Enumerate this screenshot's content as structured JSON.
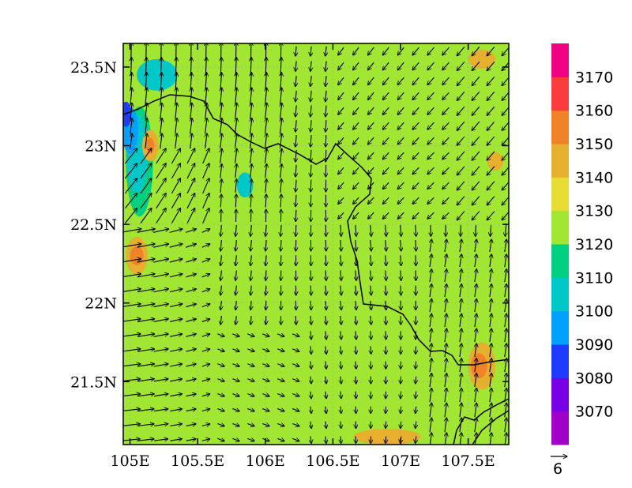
{
  "chart_data": {
    "type": "heatmap",
    "title": "",
    "xlabel": "",
    "ylabel": "",
    "xlim": [
      104.95,
      107.8
    ],
    "ylim": [
      21.1,
      23.65
    ],
    "grid": "dotted",
    "x_ticks": [
      {
        "value": 105.0,
        "label": "105E"
      },
      {
        "value": 105.5,
        "label": "105.5E"
      },
      {
        "value": 106.0,
        "label": "106E"
      },
      {
        "value": 106.5,
        "label": "106.5E"
      },
      {
        "value": 107.0,
        "label": "107E"
      },
      {
        "value": 107.5,
        "label": "107.5E"
      }
    ],
    "y_ticks": [
      {
        "value": 21.5,
        "label": "21.5N"
      },
      {
        "value": 22.0,
        "label": "22N"
      },
      {
        "value": 22.5,
        "label": "22.5N"
      },
      {
        "value": 23.0,
        "label": "23N"
      },
      {
        "value": 23.5,
        "label": "23.5N"
      }
    ],
    "colorbar": {
      "levels": [
        3070,
        3080,
        3090,
        3100,
        3110,
        3120,
        3130,
        3140,
        3150,
        3160,
        3170
      ],
      "labels": [
        "3070",
        "3080",
        "3090",
        "3100",
        "3110",
        "3120",
        "3130",
        "3140",
        "3150",
        "3160",
        "3170"
      ],
      "colors": [
        "#a000c8",
        "#7800e6",
        "#1e3cff",
        "#00a0ff",
        "#00c8c8",
        "#00d080",
        "#a0e632",
        "#e6dc32",
        "#e6af2d",
        "#f08228",
        "#fa3c3c",
        "#f00082"
      ]
    },
    "fill_regions": [
      {
        "level": 3120,
        "cx": 105.6,
        "cy": 22.6,
        "rx": 0.25,
        "ry": 0.25
      },
      {
        "level": 3120,
        "cx": 105.4,
        "cy": 21.9,
        "rx": 0.35,
        "ry": 0.2
      },
      {
        "level": 3120,
        "cx": 106.2,
        "cy": 23.1,
        "rx": 0.35,
        "ry": 0.45
      },
      {
        "level": 3120,
        "cx": 106.6,
        "cy": 22.45,
        "rx": 0.25,
        "ry": 0.12
      },
      {
        "level": 3120,
        "cx": 106.5,
        "cy": 21.9,
        "rx": 0.3,
        "ry": 0.2
      },
      {
        "level": 3120,
        "cx": 107.2,
        "cy": 22.3,
        "rx": 0.15,
        "ry": 0.2
      },
      {
        "level": 3120,
        "cx": 107.3,
        "cy": 23.1,
        "rx": 0.4,
        "ry": 0.3
      },
      {
        "level": 3120,
        "cx": 105.3,
        "cy": 23.3,
        "rx": 0.4,
        "ry": 0.25
      },
      {
        "level": 3120,
        "cx": 107.3,
        "cy": 21.45,
        "rx": 0.3,
        "ry": 0.2
      },
      {
        "level": 3120,
        "cx": 105.05,
        "cy": 22.9,
        "rx": 0.15,
        "ry": 0.5
      },
      {
        "level": 3110,
        "cx": 105.07,
        "cy": 22.9,
        "rx": 0.1,
        "ry": 0.35
      },
      {
        "level": 3100,
        "cx": 105.05,
        "cy": 22.95,
        "rx": 0.08,
        "ry": 0.25
      },
      {
        "level": 3090,
        "cx": 105.0,
        "cy": 23.1,
        "rx": 0.06,
        "ry": 0.15
      },
      {
        "level": 3080,
        "cx": 104.97,
        "cy": 23.2,
        "rx": 0.04,
        "ry": 0.08
      },
      {
        "level": 3100,
        "cx": 105.85,
        "cy": 22.75,
        "rx": 0.06,
        "ry": 0.08
      },
      {
        "level": 3100,
        "cx": 105.2,
        "cy": 23.45,
        "rx": 0.15,
        "ry": 0.1
      },
      {
        "level": 3140,
        "cx": 105.05,
        "cy": 22.3,
        "rx": 0.08,
        "ry": 0.12
      },
      {
        "level": 3150,
        "cx": 105.05,
        "cy": 22.3,
        "rx": 0.05,
        "ry": 0.06
      },
      {
        "level": 3140,
        "cx": 105.15,
        "cy": 23.0,
        "rx": 0.06,
        "ry": 0.1
      },
      {
        "level": 3150,
        "cx": 105.15,
        "cy": 23.0,
        "rx": 0.03,
        "ry": 0.05
      },
      {
        "level": 3140,
        "cx": 107.6,
        "cy": 21.6,
        "rx": 0.1,
        "ry": 0.15
      },
      {
        "level": 3150,
        "cx": 107.58,
        "cy": 21.6,
        "rx": 0.06,
        "ry": 0.08
      },
      {
        "level": 3140,
        "cx": 107.6,
        "cy": 23.55,
        "rx": 0.1,
        "ry": 0.06
      },
      {
        "level": 3140,
        "cx": 106.9,
        "cy": 21.15,
        "rx": 0.25,
        "ry": 0.05
      },
      {
        "level": 3140,
        "cx": 107.7,
        "cy": 22.9,
        "rx": 0.06,
        "ry": 0.06
      }
    ]
  }
}
